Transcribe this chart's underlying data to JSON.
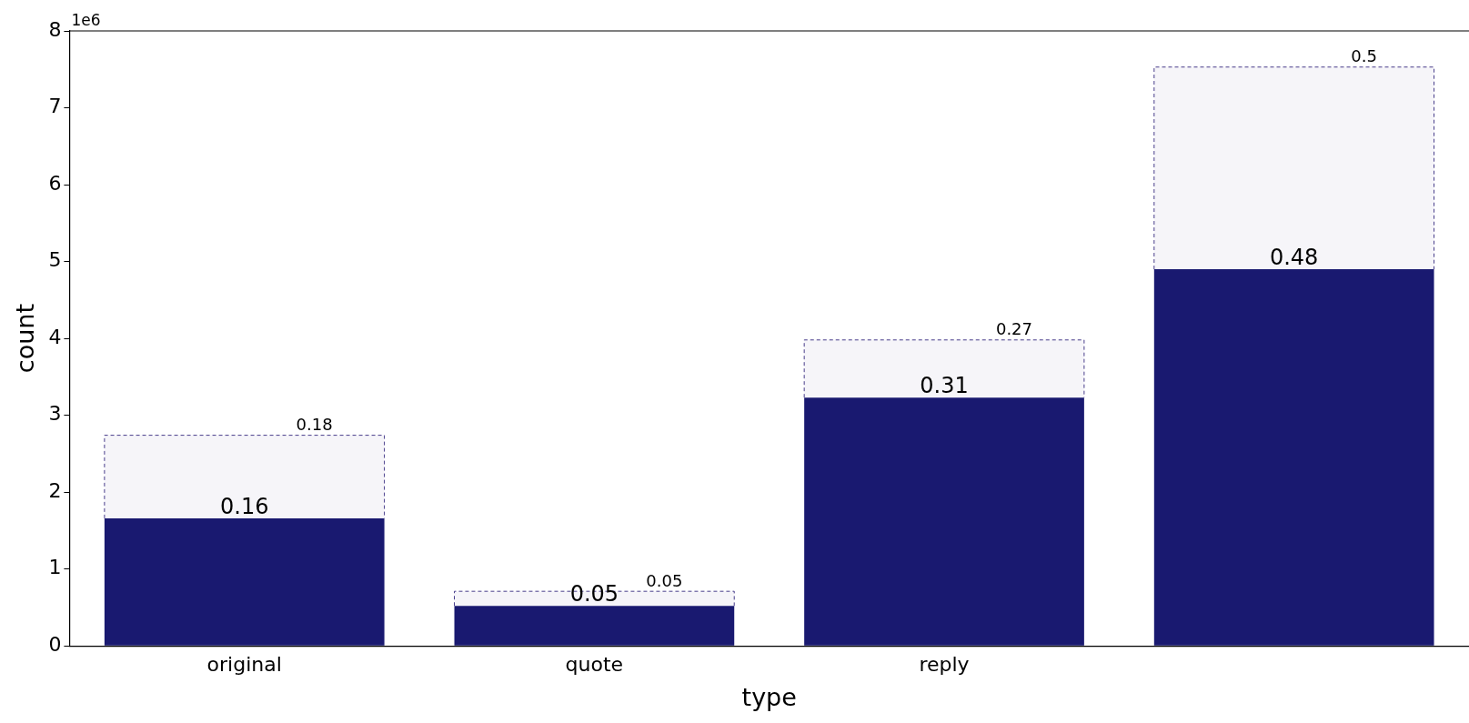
{
  "chart_data": {
    "type": "bar",
    "xlabel": "type",
    "ylabel": "count",
    "categories": [
      "original",
      "quote",
      "reply",
      null
    ],
    "ylim": [
      0,
      8
    ],
    "yticks": [
      0,
      1,
      2,
      3,
      4,
      5,
      6,
      7,
      8
    ],
    "stacked": true,
    "annotations": [
      "1e6",
      {
        "text": "0.16",
        "x": "original",
        "y": 1.66
      },
      {
        "text": "0.05",
        "x": "quote",
        "y": 0.52
      },
      {
        "text": "0.31",
        "x": "reply",
        "y": 3.23
      },
      {
        "text": "0.48",
        "y": 4.9
      },
      "0.18",
      "0.05",
      "0.27",
      "0.5"
    ],
    "grid": false,
    "legend": false,
    "series": [
      {
        "color": "#191970",
        "values": [
          1.66,
          0.52,
          3.23,
          4.9
        ]
      },
      {
        "color": "#483d8b",
        "line_style": "dashed",
        "values": [
          1.08,
          0.19,
          0.75,
          2.63
        ]
      }
    ]
  }
}
